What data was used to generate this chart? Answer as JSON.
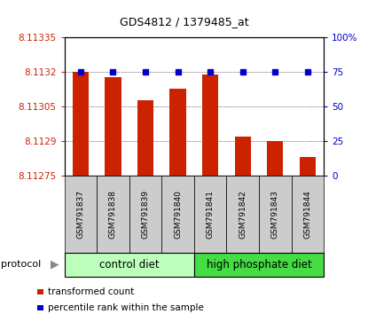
{
  "title": "GDS4812 / 1379485_at",
  "samples": [
    "GSM791837",
    "GSM791838",
    "GSM791839",
    "GSM791840",
    "GSM791841",
    "GSM791842",
    "GSM791843",
    "GSM791844"
  ],
  "red_values": [
    8.1132,
    8.11318,
    8.11308,
    8.11313,
    8.11319,
    8.11292,
    8.1129,
    8.11283
  ],
  "blue_values": [
    75,
    75,
    75,
    75,
    75,
    75,
    75,
    75
  ],
  "ylim_left": [
    8.11275,
    8.11335
  ],
  "ylim_right": [
    0,
    100
  ],
  "yticks_left": [
    8.11275,
    8.1129,
    8.11305,
    8.1132,
    8.11335
  ],
  "ytick_labels_left": [
    "8.11275",
    "8.1129",
    "8.11305",
    "8.1132",
    "8.11335"
  ],
  "yticks_right": [
    0,
    25,
    50,
    75,
    100
  ],
  "ytick_labels_right": [
    "0",
    "25",
    "50",
    "75",
    "100%"
  ],
  "groups": [
    {
      "label": "control diet",
      "indices": [
        0,
        1,
        2,
        3
      ],
      "color": "#bbffbb"
    },
    {
      "label": "high phosphate diet",
      "indices": [
        4,
        5,
        6,
        7
      ],
      "color": "#44dd44"
    }
  ],
  "protocol_label": "protocol",
  "bar_color": "#cc2200",
  "dot_color": "#0000cc",
  "grid_color": "#000000",
  "axis_color_left": "#cc2200",
  "axis_color_right": "#0000cc",
  "bar_width": 0.5,
  "sample_box_color": "#cccccc",
  "legend_items": [
    {
      "color": "#cc2200",
      "label": "transformed count"
    },
    {
      "color": "#0000cc",
      "label": "percentile rank within the sample"
    }
  ]
}
